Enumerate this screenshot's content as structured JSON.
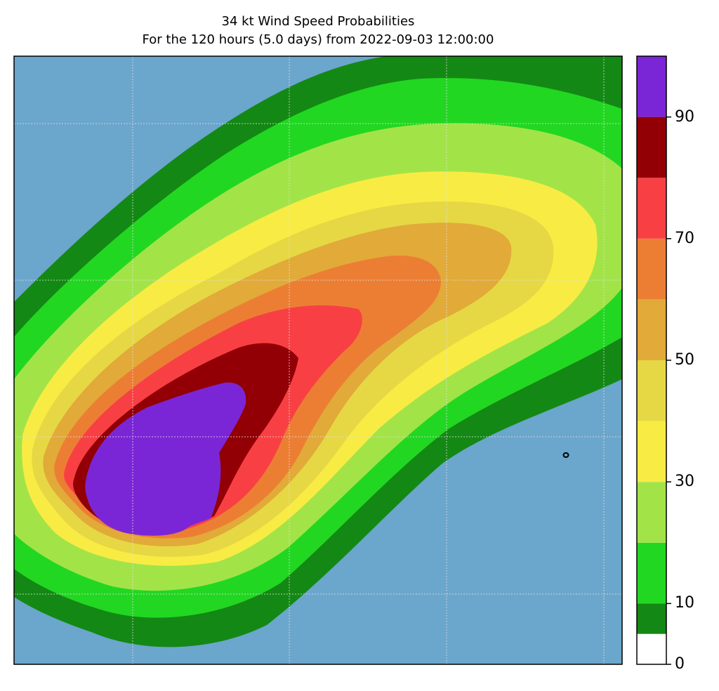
{
  "title": {
    "line1": "34 kt Wind Speed Probabilities",
    "line2": "For the 120 hours (5.0 days) from 2022-09-03 12:00:00"
  },
  "colors": {
    "ocean": "#6ba6cc",
    "gridline": "#e0e0e0",
    "frame": "#000000"
  },
  "colorbar": {
    "min": 0,
    "max": 100,
    "bins": [
      {
        "from": 0,
        "to": 5,
        "color": "#ffffff"
      },
      {
        "from": 5,
        "to": 10,
        "color": "#148814"
      },
      {
        "from": 10,
        "to": 20,
        "color": "#22d722"
      },
      {
        "from": 20,
        "to": 30,
        "color": "#a2e448"
      },
      {
        "from": 30,
        "to": 40,
        "color": "#f8ec44"
      },
      {
        "from": 40,
        "to": 50,
        "color": "#e6d844"
      },
      {
        "from": 50,
        "to": 60,
        "color": "#e2aa38"
      },
      {
        "from": 60,
        "to": 70,
        "color": "#ec7e34"
      },
      {
        "from": 70,
        "to": 80,
        "color": "#f84044"
      },
      {
        "from": 80,
        "to": 90,
        "color": "#920006"
      },
      {
        "from": 90,
        "to": 100,
        "color": "#7b26d6"
      }
    ],
    "tick_values": [
      0,
      10,
      30,
      50,
      70,
      90
    ],
    "tick_labels": [
      "0",
      "10",
      "30",
      "50",
      "70",
      "90"
    ]
  }
}
